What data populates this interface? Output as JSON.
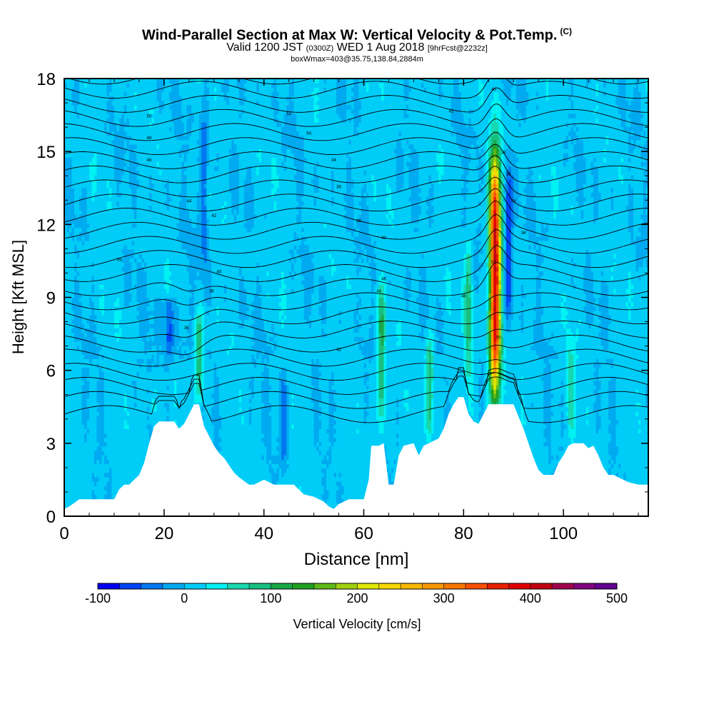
{
  "title": {
    "main": "Wind-Parallel Section at Max W: Vertical Velocity & Pot.Temp.",
    "mark": "(C)",
    "valid_prefix": "Valid 1200 JST",
    "utc": "(0300Z)",
    "date": "WED 1 Aug 2018",
    "forecast": "[9hrFcst@2232z]",
    "box": "boxWmax=403@35.75,138.84,2884m"
  },
  "chart_data": {
    "type": "heatmap",
    "xlabel": "Distance [nm]",
    "ylabel": "Height [Kft MSL]",
    "xlim": [
      0,
      117
    ],
    "ylim": [
      0,
      18
    ],
    "x_ticks": [
      "0",
      "20",
      "40",
      "60",
      "80",
      "100"
    ],
    "y_ticks": [
      "0",
      "3",
      "6",
      "9",
      "12",
      "15",
      "18"
    ],
    "x_tick_values": [
      0,
      20,
      40,
      60,
      80,
      100
    ],
    "y_tick_values": [
      0,
      3,
      6,
      9,
      12,
      15,
      18
    ],
    "terrain": [
      [
        0,
        0.3
      ],
      [
        1,
        0.4
      ],
      [
        3,
        0.7
      ],
      [
        7,
        0.7
      ],
      [
        10,
        0.7
      ],
      [
        11,
        1.1
      ],
      [
        12,
        1.3
      ],
      [
        13,
        1.3
      ],
      [
        14,
        1.5
      ],
      [
        15,
        1.7
      ],
      [
        16,
        2.2
      ],
      [
        17,
        3.0
      ],
      [
        18,
        3.7
      ],
      [
        19,
        3.9
      ],
      [
        21,
        3.9
      ],
      [
        22,
        3.9
      ],
      [
        23,
        3.6
      ],
      [
        24,
        3.8
      ],
      [
        25,
        4.2
      ],
      [
        26,
        4.6
      ],
      [
        27,
        4.6
      ],
      [
        28,
        3.7
      ],
      [
        29,
        3.3
      ],
      [
        30,
        2.9
      ],
      [
        31,
        2.6
      ],
      [
        32,
        2.4
      ],
      [
        33,
        2.1
      ],
      [
        34,
        1.8
      ],
      [
        35,
        1.6
      ],
      [
        37,
        1.3
      ],
      [
        38,
        1.3
      ],
      [
        40,
        1.5
      ],
      [
        42,
        1.3
      ],
      [
        46,
        1.3
      ],
      [
        48,
        0.9
      ],
      [
        50,
        0.8
      ],
      [
        52,
        0.6
      ],
      [
        53,
        0.4
      ],
      [
        54,
        0.3
      ],
      [
        55,
        0.5
      ],
      [
        57,
        0.7
      ],
      [
        60,
        0.7
      ],
      [
        61,
        1.5
      ],
      [
        61.5,
        2.9
      ],
      [
        63,
        2.9
      ],
      [
        64,
        3.0
      ],
      [
        65,
        1.3
      ],
      [
        66,
        1.3
      ],
      [
        67,
        2.5
      ],
      [
        68,
        2.9
      ],
      [
        70,
        3.0
      ],
      [
        71,
        2.5
      ],
      [
        72,
        2.9
      ],
      [
        75,
        3.2
      ],
      [
        76,
        3.6
      ],
      [
        77,
        4.2
      ],
      [
        78,
        4.6
      ],
      [
        79,
        4.9
      ],
      [
        80,
        4.9
      ],
      [
        81,
        4.2
      ],
      [
        82,
        3.9
      ],
      [
        83,
        3.8
      ],
      [
        84,
        4.2
      ],
      [
        85,
        4.6
      ],
      [
        88,
        4.6
      ],
      [
        90,
        4.6
      ],
      [
        91,
        4.1
      ],
      [
        92,
        3.6
      ],
      [
        93,
        3.0
      ],
      [
        94,
        2.4
      ],
      [
        95,
        1.9
      ],
      [
        96,
        1.7
      ],
      [
        98,
        1.7
      ],
      [
        99,
        2.2
      ],
      [
        100,
        2.5
      ],
      [
        101,
        2.9
      ],
      [
        102,
        3.0
      ],
      [
        104,
        3.0
      ],
      [
        105,
        2.8
      ],
      [
        106,
        2.9
      ],
      [
        107,
        2.5
      ],
      [
        108,
        2.0
      ],
      [
        109,
        1.7
      ],
      [
        110,
        1.7
      ],
      [
        112,
        1.5
      ],
      [
        113,
        1.4
      ],
      [
        115,
        1.3
      ],
      [
        117,
        1.3
      ]
    ],
    "updraft_peaks": [
      {
        "x": 86.3,
        "z_base": 4.8,
        "z_top": 15.0,
        "w": 403
      },
      {
        "x": 63.5,
        "z_base": 3.5,
        "z_top": 9.5,
        "w": 110
      },
      {
        "x": 73.2,
        "z_base": 3.2,
        "z_top": 7.5,
        "w": 100
      },
      {
        "x": 27.0,
        "z_base": 4.7,
        "z_top": 8.5,
        "w": 100
      },
      {
        "x": 81.0,
        "z_base": 5.5,
        "z_top": 11.5,
        "w": 90
      },
      {
        "x": 101.5,
        "z_base": 3.2,
        "z_top": 7.3,
        "w": 60
      },
      {
        "x": 17.8,
        "z_base": 3.8,
        "z_top": 6.0,
        "w": 40
      }
    ],
    "downdraft_peaks": [
      {
        "x": 89.0,
        "z_base": 8.0,
        "z_top": 14.5,
        "w": -80
      },
      {
        "x": 21.0,
        "z_base": 6.5,
        "z_top": 9.0,
        "w": -50
      },
      {
        "x": 44.0,
        "z_base": 2.0,
        "z_top": 6.0,
        "w": -40
      },
      {
        "x": 28.0,
        "z_base": 10.0,
        "z_top": 18.0,
        "w": -40
      }
    ],
    "isentrope_labels": [
      "34",
      "36",
      "38",
      "40",
      "42",
      "44",
      "46",
      "48",
      "50",
      "52",
      "54"
    ],
    "colorbar": {
      "label": "Vertical Velocity [cm/s]",
      "min": -100,
      "max": 500,
      "step": 25,
      "tick_labels": [
        "-100",
        "0",
        "100",
        "200",
        "300",
        "400",
        "500"
      ],
      "colors": [
        "#0000f2",
        "#0044f6",
        "#0077f0",
        "#00aaf0",
        "#00ccf8",
        "#00f2f2",
        "#18d8b0",
        "#18c080",
        "#18a848",
        "#20a020",
        "#60b818",
        "#a0d010",
        "#e0e800",
        "#f8d800",
        "#f8b800",
        "#f89800",
        "#f87800",
        "#f85000",
        "#e82000",
        "#e00000",
        "#c00010",
        "#a00050",
        "#800080",
        "#600090"
      ]
    }
  }
}
